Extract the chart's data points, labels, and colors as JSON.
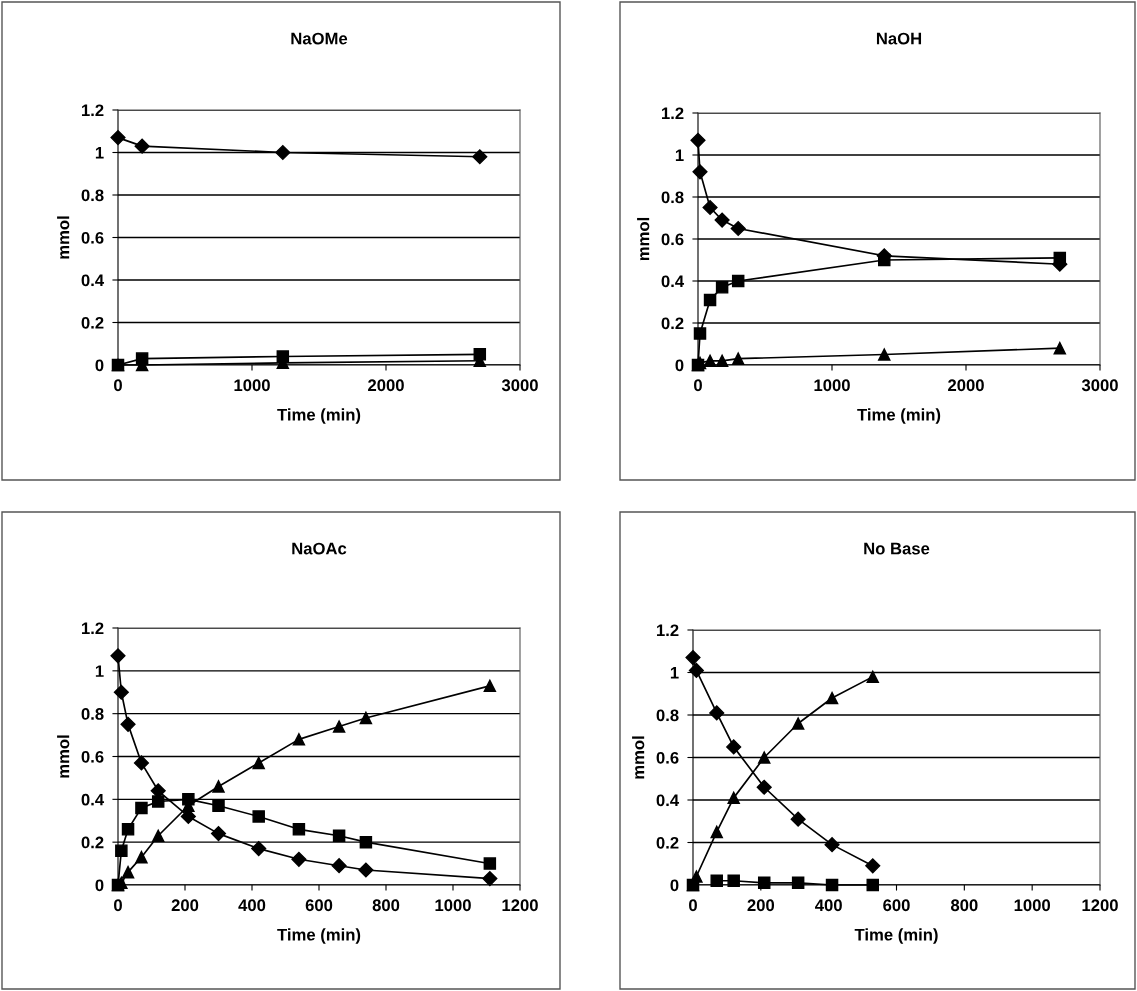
{
  "chart_data": [
    {
      "type": "line",
      "title": "NaOMe",
      "xlabel": "Time (min)",
      "ylabel": "mmol",
      "xlim": [
        0,
        3000
      ],
      "xticks": [
        0,
        1000,
        2000,
        3000
      ],
      "ylim": [
        0,
        1.2
      ],
      "yticks": [
        0,
        0.2,
        0.4,
        0.6,
        0.8,
        1,
        1.2
      ],
      "grid": "y",
      "line_style": "solid",
      "x": [
        0,
        180,
        1230,
        2700
      ],
      "series": [
        {
          "color": "#000000",
          "marker": "diamond",
          "values": [
            1.07,
            1.03,
            1.0,
            0.98
          ]
        },
        {
          "color": "#000000",
          "marker": "square",
          "values": [
            0,
            0.03,
            0.04,
            0.05
          ]
        },
        {
          "color": "#000000",
          "marker": "triangle",
          "values": [
            0,
            0,
            0.01,
            0.02
          ]
        }
      ]
    },
    {
      "type": "line",
      "title": "NaOH",
      "xlabel": "Time (min)",
      "ylabel": "mmol",
      "xlim": [
        0,
        3000
      ],
      "xticks": [
        0,
        1000,
        2000,
        3000
      ],
      "ylim": [
        0,
        1.2
      ],
      "yticks": [
        0,
        0.2,
        0.4,
        0.6,
        0.8,
        1,
        1.2
      ],
      "grid": "y",
      "line_style": "solid",
      "x": [
        0,
        15,
        90,
        180,
        300,
        1390,
        2700
      ],
      "series": [
        {
          "color": "#000000",
          "marker": "diamond",
          "values": [
            1.07,
            0.92,
            0.75,
            0.69,
            0.65,
            0.52,
            0.48
          ]
        },
        {
          "color": "#000000",
          "marker": "square",
          "values": [
            0,
            0.15,
            0.31,
            0.37,
            0.4,
            0.5,
            0.51
          ]
        },
        {
          "color": "#000000",
          "marker": "triangle",
          "values": [
            0,
            0.01,
            0.02,
            0.02,
            0.03,
            0.05,
            0.08
          ]
        }
      ]
    },
    {
      "type": "line",
      "title": "NaOAc",
      "xlabel": "Time (min)",
      "ylabel": "mmol",
      "xlim": [
        0,
        1200
      ],
      "xticks": [
        0,
        200,
        400,
        600,
        800,
        1000,
        1200
      ],
      "ylim": [
        0,
        1.2
      ],
      "yticks": [
        0,
        0.2,
        0.4,
        0.6,
        0.8,
        1,
        1.2
      ],
      "grid": "y",
      "line_style": "solid",
      "x": [
        0,
        10,
        30,
        70,
        120,
        210,
        300,
        420,
        540,
        660,
        740,
        1110
      ],
      "series": [
        {
          "color": "#000000",
          "marker": "diamond",
          "values": [
            1.07,
            0.9,
            0.75,
            0.57,
            0.44,
            0.32,
            0.24,
            0.17,
            0.12,
            0.09,
            0.07,
            0.03
          ]
        },
        {
          "color": "#000000",
          "marker": "square",
          "values": [
            0,
            0.16,
            0.26,
            0.36,
            0.39,
            0.4,
            0.37,
            0.32,
            0.26,
            0.23,
            0.2,
            0.1
          ]
        },
        {
          "color": "#000000",
          "marker": "triangle",
          "values": [
            0,
            0.01,
            0.06,
            0.13,
            0.23,
            0.37,
            0.46,
            0.57,
            0.68,
            0.74,
            0.78,
            0.93
          ]
        }
      ]
    },
    {
      "type": "line",
      "title": "No Base",
      "xlabel": "Time (min)",
      "ylabel": "mmol",
      "xlim": [
        0,
        1200
      ],
      "xticks": [
        0,
        200,
        400,
        600,
        800,
        1000,
        1200
      ],
      "ylim": [
        0,
        1.2
      ],
      "yticks": [
        0,
        0.2,
        0.4,
        0.6,
        0.8,
        1,
        1.2
      ],
      "grid": "y",
      "line_style": "solid",
      "x": [
        0,
        10,
        70,
        120,
        210,
        310,
        410,
        530
      ],
      "series": [
        {
          "color": "#000000",
          "marker": "diamond",
          "values": [
            1.07,
            1.01,
            0.81,
            0.65,
            0.46,
            0.31,
            0.19,
            0.09
          ]
        },
        {
          "color": "#000000",
          "marker": "square",
          "values": [
            0,
            null,
            0.02,
            0.02,
            0.01,
            0.01,
            0,
            0
          ]
        },
        {
          "color": "#000000",
          "marker": "triangle",
          "values": [
            0,
            0.04,
            0.25,
            0.41,
            0.6,
            0.76,
            0.88,
            0.98
          ]
        }
      ]
    }
  ]
}
